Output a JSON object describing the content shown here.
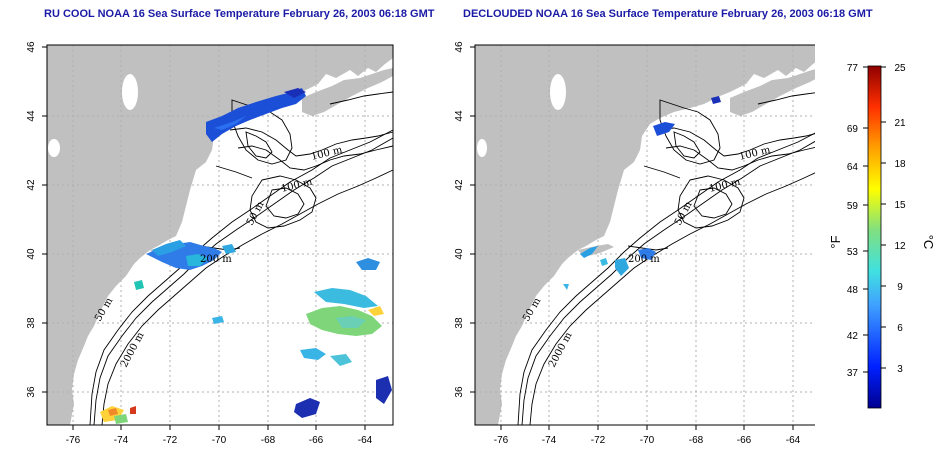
{
  "left_panel": {
    "title": "RU COOL NOAA 16 Sea Surface Temperature February 26, 2003 06:18 GMT",
    "contour_labels": [
      "100 m",
      "100 m",
      "50 m",
      "200 m",
      "50 m",
      "2000 m"
    ]
  },
  "right_panel": {
    "title": "DECLOUDED NOAA 16 Sea Surface Temperature February 26, 2003 06:18 GMT",
    "contour_labels": [
      "100 m",
      "100 m",
      "50 m",
      "200 m",
      "50 m",
      "2000 m"
    ]
  },
  "axes": {
    "x_ticks": [
      "-76",
      "-74",
      "-72",
      "-70",
      "-68",
      "-66",
      "-64"
    ],
    "y_ticks": [
      "36",
      "38",
      "40",
      "42",
      "44",
      "46"
    ]
  },
  "colorbar": {
    "fahrenheit_ticks": [
      "77",
      "69",
      "64",
      "59",
      "53",
      "48",
      "42",
      "37"
    ],
    "celsius_ticks": [
      "25",
      "21",
      "18",
      "15",
      "12",
      "9",
      "6",
      "3"
    ],
    "fahrenheit_unit": "°F",
    "celsius_unit": "°C",
    "celsius_range": [
      0,
      25
    ]
  },
  "colors": {
    "title": "#1a1aa6",
    "land": "#c0c0c0",
    "grid": "#b0b0b0"
  }
}
